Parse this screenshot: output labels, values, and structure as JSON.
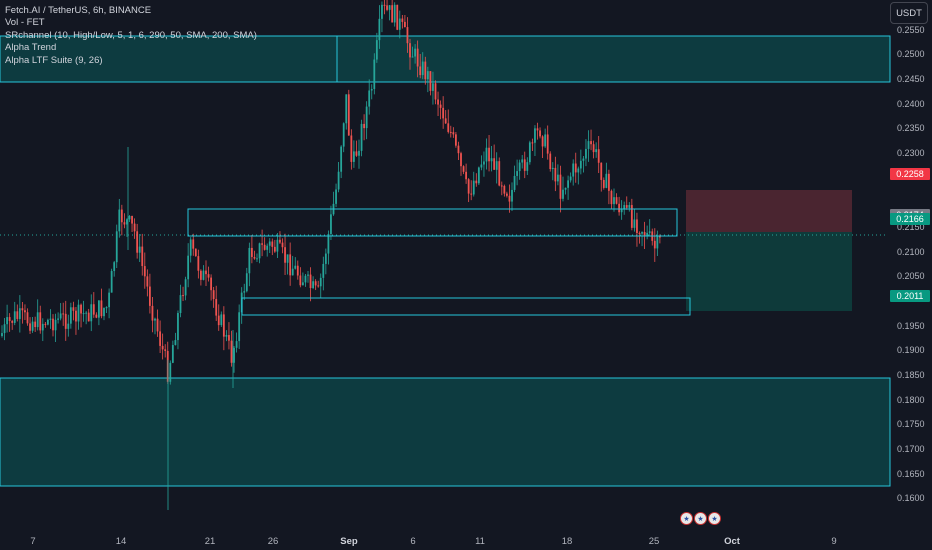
{
  "legend": {
    "symbol_line": "Fetch.AI / TetherUS, 6h, BINANCE",
    "indicators": [
      "Vol - FET",
      "SRchannel (10, High/Low, 5, 1, 6, 290, 50, SMA, 200, SMA)",
      "Alpha Trend",
      "Alpha LTF Suite (9, 26)"
    ]
  },
  "currency_button": "USDT",
  "y_axis_labels": [
    "0.2550",
    "0.2500",
    "0.2450",
    "0.2400",
    "0.2350",
    "0.2300",
    "0.2150",
    "0.2100",
    "0.2050",
    "0.1950",
    "0.1900",
    "0.1850",
    "0.1800",
    "0.1750",
    "0.1700",
    "0.1650",
    "0.1600"
  ],
  "price_tags": {
    "stop": {
      "text": "0.2258",
      "color": "#f23645"
    },
    "last_gray": {
      "text": "0.2174",
      "color": "#787b86"
    },
    "current": {
      "text": "0.2166",
      "color": "#089981"
    },
    "target": {
      "text": "0.2011",
      "color": "#089981"
    }
  },
  "x_axis_labels": [
    {
      "text": "7"
    },
    {
      "text": "14"
    },
    {
      "text": "21"
    },
    {
      "text": "26"
    },
    {
      "text": "Sep",
      "bold": true
    },
    {
      "text": "6"
    },
    {
      "text": "11"
    },
    {
      "text": "18"
    },
    {
      "text": "25"
    },
    {
      "text": "Oct",
      "bold": true
    },
    {
      "text": "9"
    }
  ],
  "colors": {
    "background": "#131722",
    "bull": "#26a69a",
    "bear": "#ef5350",
    "zone": "#26c6da",
    "zone_fill": "#0d3b40",
    "stop_zone": "#4a2530",
    "target_zone": "#0e3a3a"
  },
  "events_icons": [
    "us-flag-icon",
    "us-flag-icon",
    "us-flag-icon"
  ]
}
